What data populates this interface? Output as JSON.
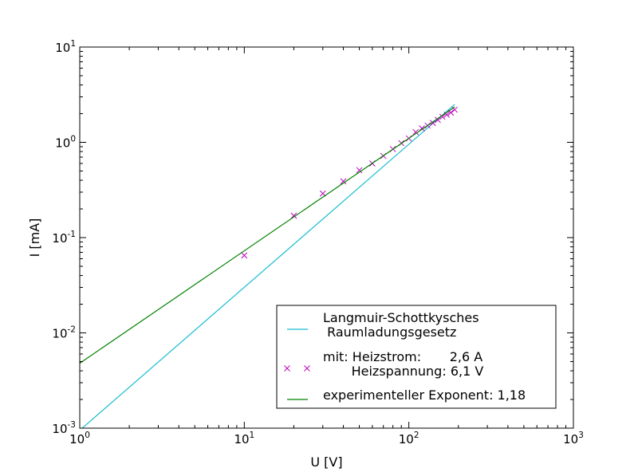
{
  "chart_data": {
    "type": "line",
    "xscale": "log",
    "yscale": "log",
    "xlabel": "U [V]",
    "ylabel": "I [mA]",
    "xlim": [
      1,
      1000
    ],
    "ylim": [
      0.001,
      10
    ],
    "x_ticks": [
      {
        "base": "10",
        "exp": "0",
        "value": 1
      },
      {
        "base": "10",
        "exp": "1",
        "value": 10
      },
      {
        "base": "10",
        "exp": "2",
        "value": 100
      },
      {
        "base": "10",
        "exp": "3",
        "value": 1000
      }
    ],
    "y_ticks": [
      {
        "base": "10",
        "exp": "-3",
        "value": 0.001
      },
      {
        "base": "10",
        "exp": "-2",
        "value": 0.01
      },
      {
        "base": "10",
        "exp": "-1",
        "value": 0.1
      },
      {
        "base": "10",
        "exp": "0",
        "value": 1
      },
      {
        "base": "10",
        "exp": "1",
        "value": 10
      }
    ],
    "legend_position": "lower-right",
    "series": [
      {
        "name": [
          "Langmuir-Schottkysches",
          " Raumladungsgesetz"
        ],
        "kind": "line",
        "color": "#17becf",
        "x": [
          1,
          190
        ],
        "y": [
          0.00095,
          2.5
        ]
      },
      {
        "name": [
          "mit: Heizstrom:       2,6 A",
          "       Heizspannung: 6,1 V"
        ],
        "kind": "scatter",
        "marker": "x",
        "color": "#bf00bf",
        "x": [
          10,
          20,
          30,
          40,
          50,
          60,
          70,
          80,
          90,
          100,
          110,
          120,
          130,
          140,
          150,
          160,
          170,
          180,
          190
        ],
        "y": [
          0.065,
          0.17,
          0.29,
          0.39,
          0.51,
          0.6,
          0.72,
          0.85,
          0.98,
          1.1,
          1.28,
          1.4,
          1.5,
          1.6,
          1.72,
          1.85,
          1.95,
          2.05,
          2.2
        ]
      },
      {
        "name": [
          "experimenteller Exponent: 1,18"
        ],
        "kind": "line",
        "color": "#008000",
        "x": [
          1,
          190
        ],
        "y": [
          0.0048,
          2.35
        ]
      }
    ]
  }
}
